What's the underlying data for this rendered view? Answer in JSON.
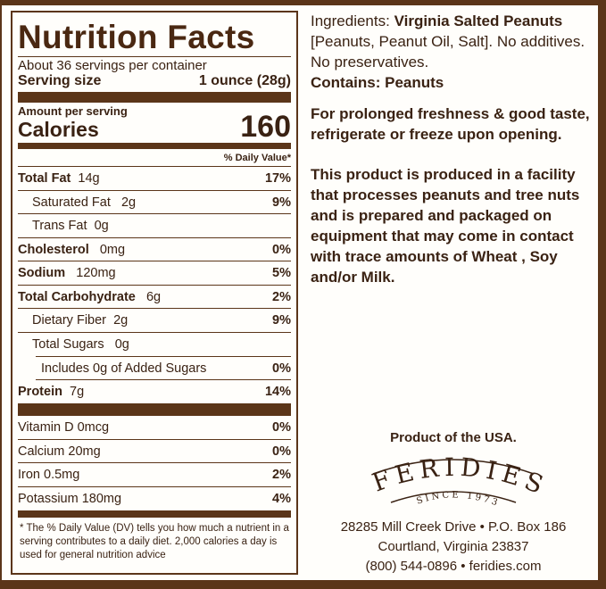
{
  "label": {
    "title": "Nutrition Facts",
    "servings": "About 36 servings per container",
    "serving_size_label": "Serving size",
    "serving_size_value": "1 ounce (28g)",
    "amount_per_serving": "Amount per serving",
    "calories_label": "Calories",
    "calories_value": "160",
    "daily_value_header": "% Daily Value*",
    "nutrients": [
      {
        "name": "Total Fat",
        "amount": "14g",
        "pct": "17%"
      },
      {
        "name": "Saturated Fat",
        "amount": "2g",
        "pct": "9%"
      },
      {
        "name": "Trans Fat",
        "amount": "0g",
        "pct": ""
      },
      {
        "name": "Cholesterol",
        "amount": "0mg",
        "pct": "0%"
      },
      {
        "name": "Sodium",
        "amount": "120mg",
        "pct": "5%"
      },
      {
        "name": "Total Carbohydrate",
        "amount": "6g",
        "pct": "2%"
      },
      {
        "name": "Dietary Fiber",
        "amount": "2g",
        "pct": "9%"
      },
      {
        "name": "Total Sugars",
        "amount": "0g",
        "pct": ""
      },
      {
        "name": "Includes 0g of Added Sugars",
        "amount": "",
        "pct": "0%"
      },
      {
        "name": "Protein",
        "amount": "7g",
        "pct": "14%"
      }
    ],
    "vitamins": [
      {
        "name": "Vitamin D 0mcg",
        "pct": "0%"
      },
      {
        "name": "Calcium 20mg",
        "pct": "0%"
      },
      {
        "name": "Iron 0.5mg",
        "pct": "2%"
      },
      {
        "name": "Potassium 180mg",
        "pct": "4%"
      }
    ],
    "footnote": "* The % Daily Value (DV) tells you how much a nutrient in a serving contributes to a daily diet. 2,000 calories a day is used for general nutrition advice"
  },
  "info": {
    "ingredients_label": "Ingredients:",
    "ingredients_bold": "Virginia Salted Peanuts",
    "ingredients_rest": "[Peanuts, Peanut Oil, Salt]. No additives. No preservatives.",
    "contains": "Contains: Peanuts",
    "storage": "For prolonged freshness & good taste, refrigerate or freeze upon opening.",
    "allergen": "This product is produced in a facility that processes peanuts and tree nuts and is prepared and packaged on equipment that may come in contact with trace amounts of Wheat , Soy and/or Milk."
  },
  "brand": {
    "origin": "Product of the USA.",
    "logo_name": "FERIDIES",
    "logo_since": "SINCE 1973",
    "address1": "28285 Mill Creek Drive • P.O. Box 186",
    "address2": "Courtland, Virginia 23837",
    "contact": "(800) 544-0896 • feridies.com"
  },
  "colors": {
    "brown": "#5b3519",
    "text": "#3a2213",
    "background": "#fffefb"
  }
}
